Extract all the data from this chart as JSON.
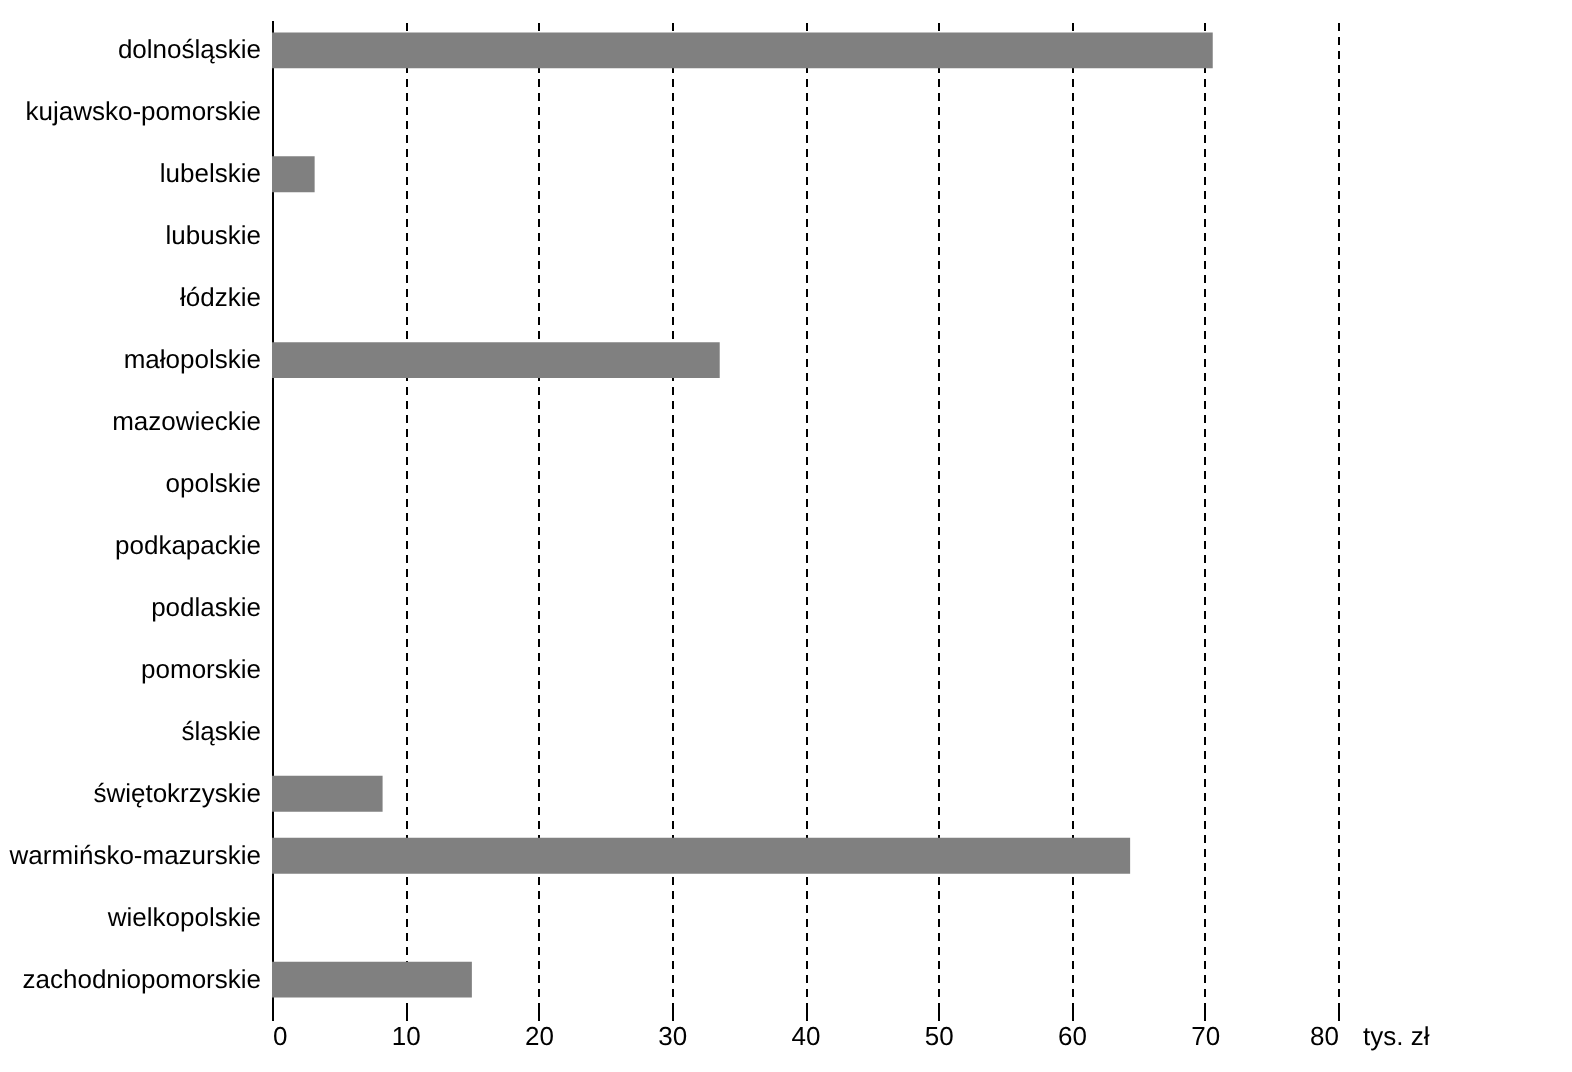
{
  "chart_data": {
    "type": "bar",
    "orientation": "horizontal",
    "xlabel": "tys. zł",
    "categories": [
      "dolnośląskie",
      "kujawsko-pomorskie",
      "lubelskie",
      "lubuskie",
      "łódzkie",
      "małopolskie",
      "mazowieckie",
      "opolskie",
      "podkapackie",
      "podlaskie",
      "pomorskie",
      "śląskie",
      "świętokrzyskie",
      "warmińsko-mazurskie",
      "wielkopolskie",
      "zachodniopomorskie"
    ],
    "values": [
      70.6,
      null,
      3.2,
      null,
      null,
      33.6,
      null,
      null,
      null,
      null,
      null,
      null,
      8.3,
      64.4,
      null,
      15.0
    ],
    "color": "#808080",
    "xlim": [
      0,
      80
    ],
    "xticks": [
      0,
      10,
      20,
      30,
      40,
      50,
      60,
      70,
      80
    ],
    "grid": "x"
  }
}
